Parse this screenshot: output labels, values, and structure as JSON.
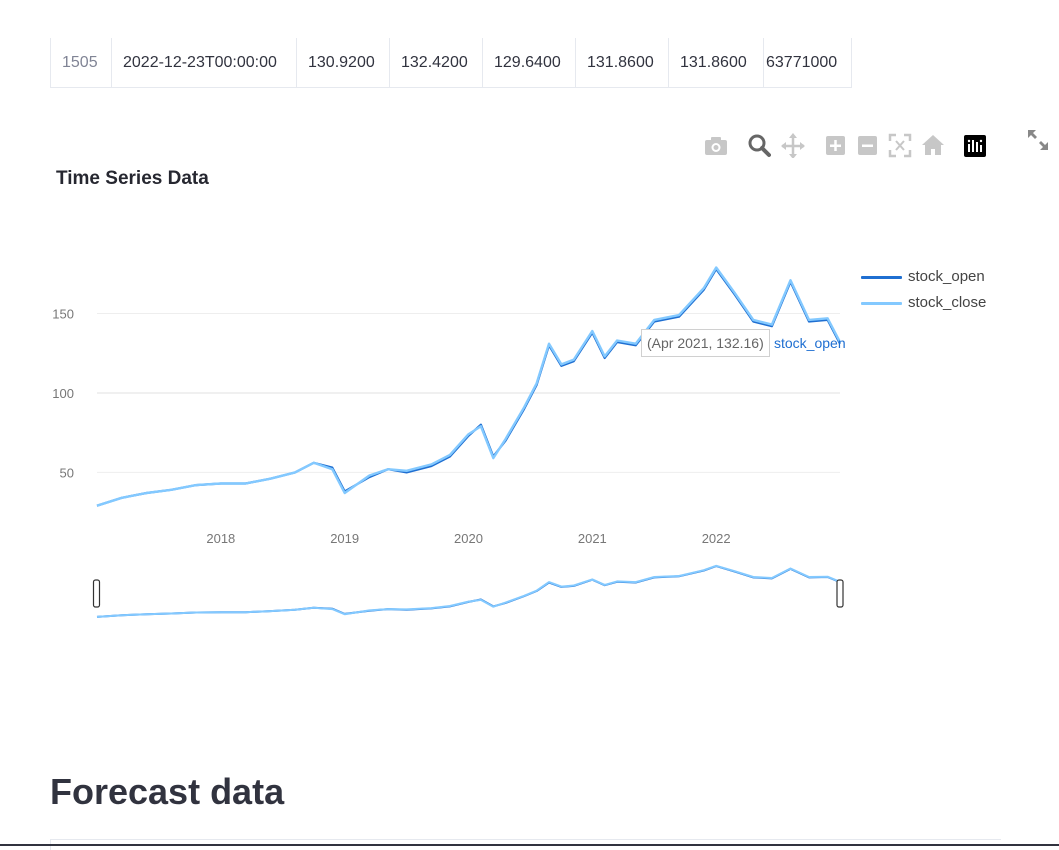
{
  "top_table": {
    "row": [
      "1505",
      "2022-12-23T00:00:00",
      "130.9200",
      "132.4200",
      "129.6400",
      "131.8600",
      "131.8600",
      "63771000"
    ]
  },
  "toolbar": {
    "icons": [
      "camera-icon",
      "zoom-icon",
      "pan-icon",
      "zoom-in-icon",
      "zoom-out-icon",
      "autoscale-icon",
      "reset-axes-icon",
      "plotly-logo-icon"
    ]
  },
  "chart": {
    "title": "Time Series Data"
  },
  "chart_data": {
    "type": "line",
    "title": "Time Series Data",
    "xlabel": "",
    "ylabel": "",
    "x_ticks": [
      "2018",
      "2019",
      "2020",
      "2021",
      "2022"
    ],
    "y_ticks": [
      50,
      100,
      150
    ],
    "xlim": [
      2017.0,
      2023.0
    ],
    "ylim": [
      20,
      190
    ],
    "x": [
      2017.0,
      2017.2,
      2017.4,
      2017.6,
      2017.8,
      2018.0,
      2018.2,
      2018.4,
      2018.6,
      2018.75,
      2018.9,
      2019.0,
      2019.2,
      2019.35,
      2019.5,
      2019.7,
      2019.85,
      2020.0,
      2020.1,
      2020.2,
      2020.3,
      2020.45,
      2020.55,
      2020.65,
      2020.75,
      2020.85,
      2021.0,
      2021.1,
      2021.2,
      2021.35,
      2021.5,
      2021.7,
      2021.9,
      2022.0,
      2022.15,
      2022.3,
      2022.45,
      2022.6,
      2022.75,
      2022.9,
      2023.0
    ],
    "series": [
      {
        "name": "stock_open",
        "color": "#1f6fd1",
        "values": [
          29,
          34,
          37,
          39,
          42,
          43,
          43,
          46,
          50,
          56,
          53,
          38,
          47,
          52,
          50,
          54,
          60,
          73,
          80,
          60,
          70,
          90,
          105,
          130,
          117,
          120,
          138,
          122,
          132,
          130,
          145,
          148,
          165,
          178,
          162,
          145,
          142,
          170,
          145,
          146,
          131
        ]
      },
      {
        "name": "stock_close",
        "color": "#83c9ff",
        "values": [
          29,
          34,
          37,
          39,
          42,
          43,
          43,
          46,
          50,
          56,
          52,
          37,
          48,
          52,
          51,
          55,
          61,
          74,
          79,
          59,
          71,
          91,
          106,
          131,
          118,
          121,
          139,
          123,
          133,
          131,
          146,
          149,
          166,
          179,
          163,
          146,
          143,
          171,
          146,
          147,
          132
        ]
      }
    ],
    "legend": [
      "stock_open",
      "stock_close"
    ],
    "hover": {
      "text": "(Apr 2021, 132.16)",
      "series": "stock_open"
    }
  },
  "forecast": {
    "title": "Forecast data"
  }
}
